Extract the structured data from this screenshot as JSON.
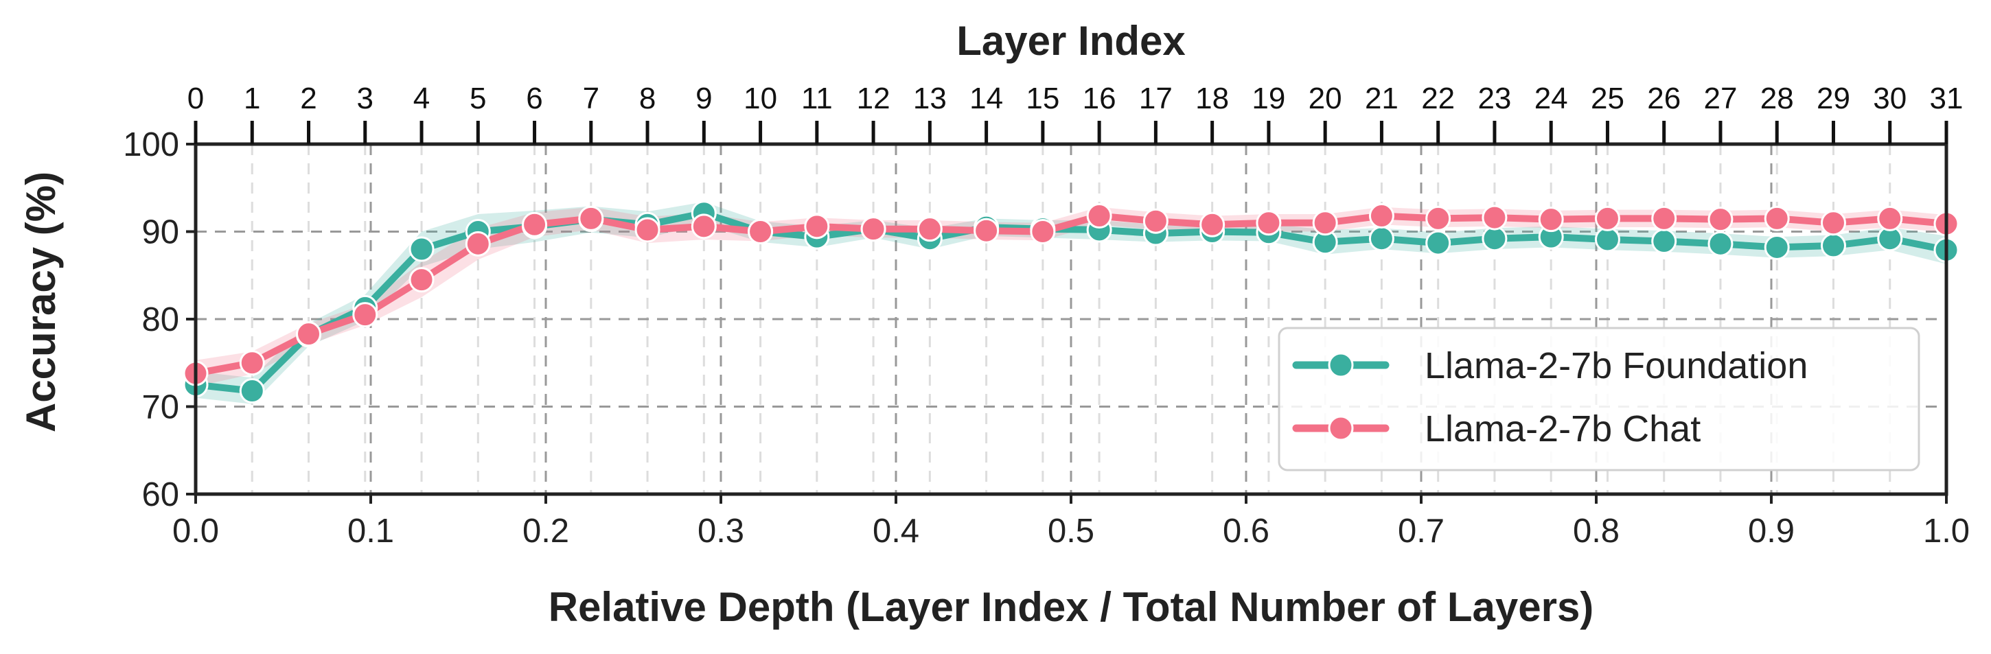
{
  "chart_data": {
    "type": "line",
    "xlabel": "Relative Depth (Layer Index / Total Number of Layers)",
    "ylabel": "Accuracy (%)",
    "top_xlabel": "Layer Index",
    "xlim": [
      0.0,
      1.0
    ],
    "ylim": [
      60,
      100
    ],
    "x_ticks": [
      "0.0",
      "0.1",
      "0.2",
      "0.3",
      "0.4",
      "0.5",
      "0.6",
      "0.7",
      "0.8",
      "0.9",
      "1.0"
    ],
    "y_ticks": [
      "60",
      "70",
      "80",
      "90",
      "100"
    ],
    "top_ticks": [
      "0",
      "1",
      "2",
      "3",
      "4",
      "5",
      "6",
      "7",
      "8",
      "9",
      "10",
      "11",
      "12",
      "13",
      "14",
      "15",
      "16",
      "17",
      "18",
      "19",
      "20",
      "21",
      "22",
      "23",
      "24",
      "25",
      "26",
      "27",
      "28",
      "29",
      "30",
      "31"
    ],
    "layers": [
      0,
      1,
      2,
      3,
      4,
      5,
      6,
      7,
      8,
      9,
      10,
      11,
      12,
      13,
      14,
      15,
      16,
      17,
      18,
      19,
      20,
      21,
      22,
      23,
      24,
      25,
      26,
      27,
      28,
      29,
      30,
      31
    ],
    "total_layers": 31,
    "grid": true,
    "legend_position": "lower-right",
    "series": [
      {
        "name": "Llama-2-7b Foundation",
        "color": "#3aaf9f",
        "values": [
          72.5,
          71.8,
          78.2,
          81.3,
          88.0,
          90.0,
          90.6,
          91.4,
          90.8,
          92.1,
          90.0,
          89.4,
          90.3,
          89.2,
          90.5,
          90.3,
          90.2,
          89.8,
          90.0,
          89.9,
          88.8,
          89.2,
          88.7,
          89.2,
          89.4,
          89.1,
          88.9,
          88.6,
          88.2,
          88.4,
          89.2,
          87.9
        ],
        "band": [
          1.5,
          1.5,
          1.3,
          1.5,
          2.0,
          2.0,
          1.8,
          1.5,
          1.5,
          1.3,
          1.2,
          1.2,
          1.0,
          1.2,
          1.0,
          1.0,
          1.1,
          1.0,
          1.0,
          1.0,
          1.4,
          1.2,
          1.2,
          1.2,
          1.2,
          1.2,
          1.2,
          1.2,
          1.2,
          1.2,
          1.3,
          1.6
        ]
      },
      {
        "name": "Llama-2-7b Chat",
        "color": "#f37087",
        "values": [
          73.8,
          75.0,
          78.3,
          80.5,
          84.5,
          88.6,
          90.8,
          91.5,
          90.2,
          90.6,
          90.0,
          90.6,
          90.3,
          90.3,
          90.1,
          90.0,
          91.8,
          91.2,
          90.8,
          91.0,
          91.0,
          91.8,
          91.5,
          91.6,
          91.4,
          91.5,
          91.5,
          91.4,
          91.5,
          91.0,
          91.5,
          90.9
        ],
        "band": [
          1.5,
          1.3,
          1.2,
          1.2,
          2.0,
          1.8,
          1.4,
          1.3,
          1.5,
          1.5,
          1.1,
          1.0,
          1.0,
          1.0,
          1.0,
          1.0,
          1.0,
          1.0,
          1.0,
          1.0,
          1.0,
          1.0,
          1.0,
          1.0,
          1.0,
          1.0,
          1.0,
          1.0,
          1.0,
          1.0,
          1.0,
          1.0
        ]
      }
    ]
  }
}
